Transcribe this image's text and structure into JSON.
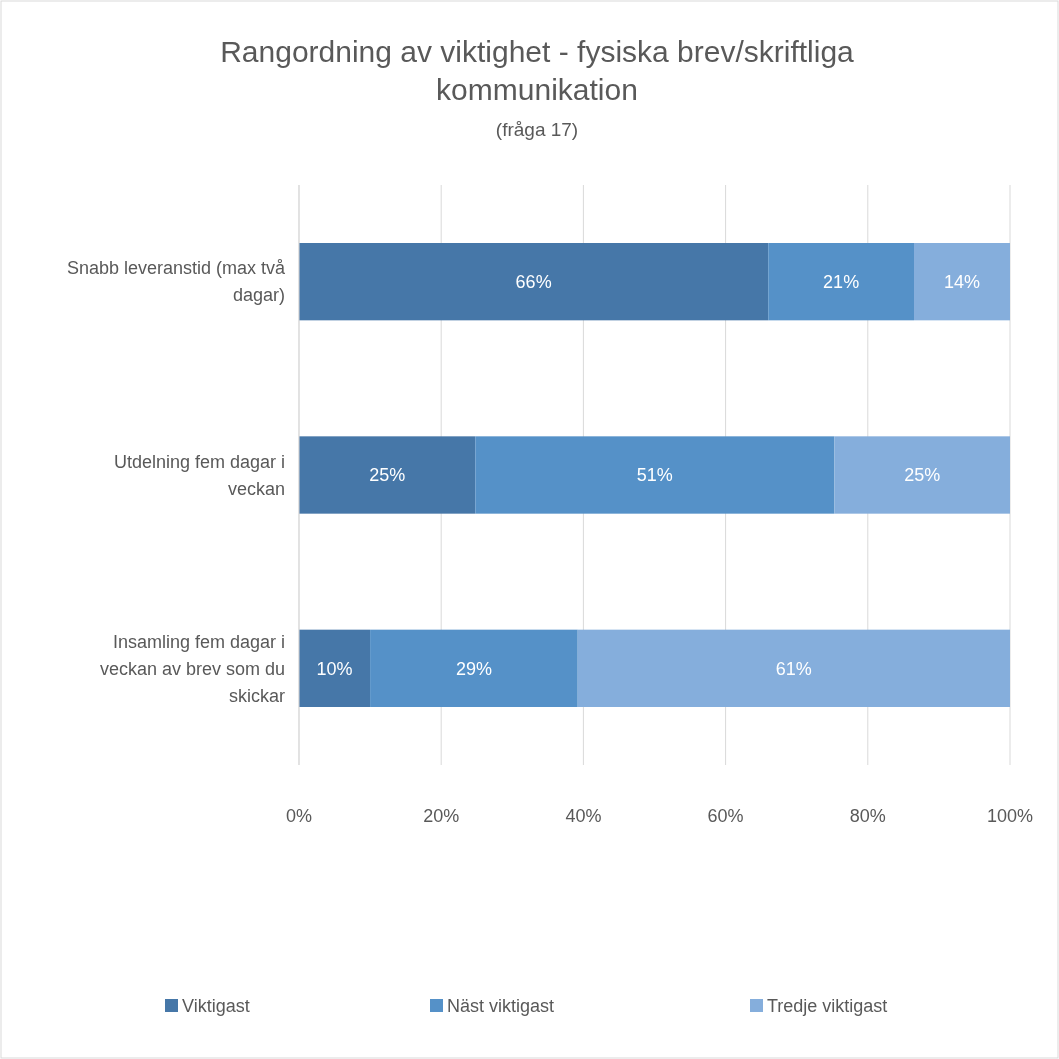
{
  "chart_data": {
    "type": "bar",
    "orientation": "horizontal",
    "stacked": true,
    "title": "Rangordning av viktighet - fysiska brev/skriftliga kommunikation",
    "subtitle": "(fråga 17)",
    "categories": [
      "Snabb leveranstid (max två dagar)",
      "Utdelning fem dagar i veckan",
      "Insamling fem dagar i veckan av brev som du skickar"
    ],
    "series": [
      {
        "name": "Viktigast",
        "color": "#4677a8",
        "values": [
          66,
          24.8,
          10.0
        ],
        "value_labels": [
          "66%",
          "25%",
          "10%"
        ]
      },
      {
        "name": "Näst viktigast",
        "color": "#5591c8",
        "values": [
          20.5,
          50.5,
          29.2
        ],
        "value_labels": [
          "21%",
          "51%",
          "29%"
        ]
      },
      {
        "name": "Tredje viktigast",
        "color": "#85aedc",
        "values": [
          13.5,
          24.7,
          60.8
        ],
        "value_labels": [
          "14%",
          "25%",
          "61%"
        ]
      }
    ],
    "xlim": [
      0,
      100
    ],
    "xticks": [
      {
        "value": 0,
        "label": "0%"
      },
      {
        "value": 20,
        "label": "20%"
      },
      {
        "value": 40,
        "label": "40%"
      },
      {
        "value": 60,
        "label": "60%"
      },
      {
        "value": 80,
        "label": "80%"
      },
      {
        "value": 100,
        "label": "100%"
      }
    ],
    "grid": "x",
    "legend": "bottom"
  }
}
